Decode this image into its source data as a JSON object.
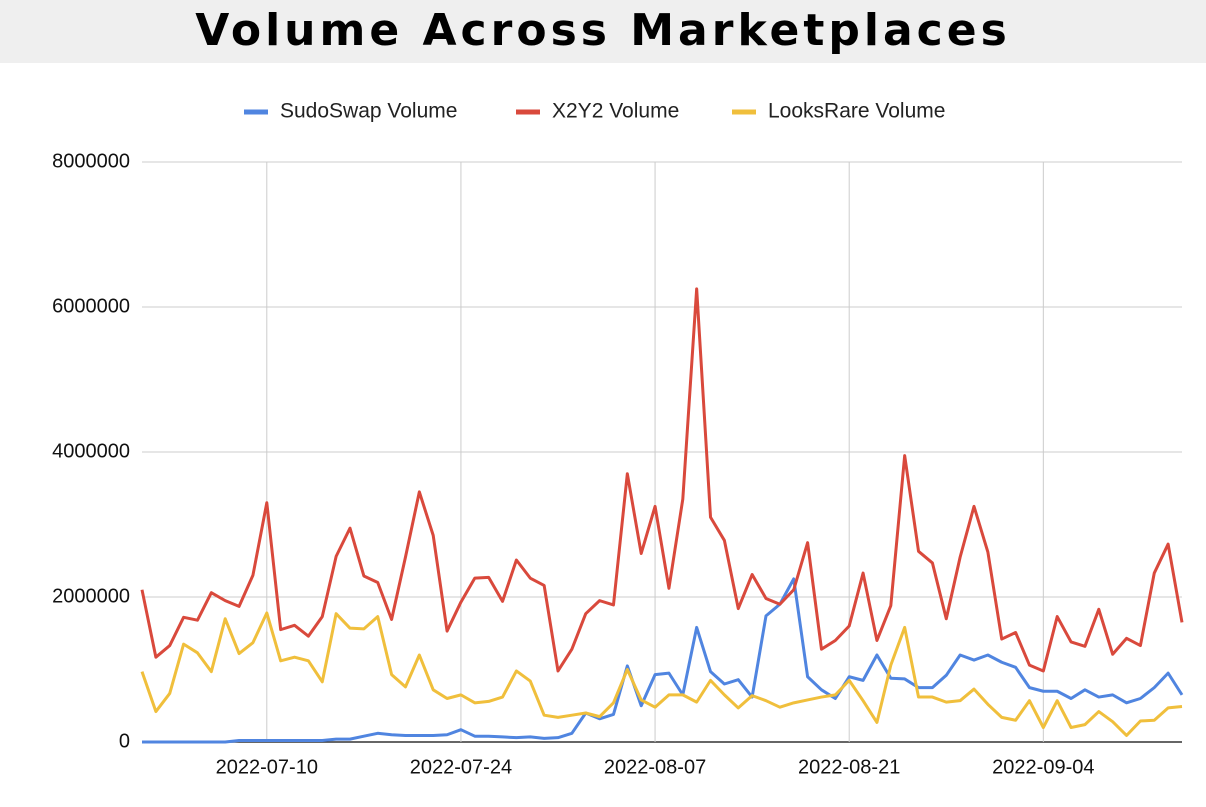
{
  "chart_data": {
    "type": "line",
    "title": "Volume Across Marketplaces",
    "x": [
      "2022-07-01",
      "2022-07-02",
      "2022-07-03",
      "2022-07-04",
      "2022-07-05",
      "2022-07-06",
      "2022-07-07",
      "2022-07-08",
      "2022-07-09",
      "2022-07-10",
      "2022-07-11",
      "2022-07-12",
      "2022-07-13",
      "2022-07-14",
      "2022-07-15",
      "2022-07-16",
      "2022-07-17",
      "2022-07-18",
      "2022-07-19",
      "2022-07-20",
      "2022-07-21",
      "2022-07-22",
      "2022-07-23",
      "2022-07-24",
      "2022-07-25",
      "2022-07-26",
      "2022-07-27",
      "2022-07-28",
      "2022-07-29",
      "2022-07-30",
      "2022-07-31",
      "2022-08-01",
      "2022-08-02",
      "2022-08-03",
      "2022-08-04",
      "2022-08-05",
      "2022-08-06",
      "2022-08-07",
      "2022-08-08",
      "2022-08-09",
      "2022-08-10",
      "2022-08-11",
      "2022-08-12",
      "2022-08-13",
      "2022-08-14",
      "2022-08-15",
      "2022-08-16",
      "2022-08-17",
      "2022-08-18",
      "2022-08-19",
      "2022-08-20",
      "2022-08-21",
      "2022-08-22",
      "2022-08-23",
      "2022-08-24",
      "2022-08-25",
      "2022-08-26",
      "2022-08-27",
      "2022-08-28",
      "2022-08-29",
      "2022-08-30",
      "2022-08-31",
      "2022-09-01",
      "2022-09-02",
      "2022-09-03",
      "2022-09-04",
      "2022-09-05",
      "2022-09-06",
      "2022-09-07",
      "2022-09-08",
      "2022-09-09",
      "2022-09-10",
      "2022-09-11",
      "2022-09-12",
      "2022-09-13",
      "2022-09-14"
    ],
    "series": [
      {
        "name": "SudoSwap Volume",
        "color": "#5085e0",
        "values": [
          0,
          0,
          0,
          0,
          0,
          0,
          0,
          20000,
          20000,
          20000,
          20000,
          20000,
          20000,
          20000,
          40000,
          40000,
          80000,
          120000,
          100000,
          90000,
          90000,
          90000,
          100000,
          170000,
          80000,
          80000,
          70000,
          60000,
          70000,
          50000,
          60000,
          120000,
          400000,
          320000,
          380000,
          1050000,
          500000,
          930000,
          950000,
          650000,
          1580000,
          970000,
          800000,
          860000,
          620000,
          1740000,
          1900000,
          2250000,
          900000,
          720000,
          600000,
          900000,
          850000,
          1200000,
          880000,
          870000,
          750000,
          750000,
          920000,
          1200000,
          1130000,
          1200000,
          1100000,
          1030000,
          750000,
          700000,
          700000,
          600000,
          720000,
          620000,
          650000,
          540000,
          600000,
          750000,
          950000,
          650000
        ]
      },
      {
        "name": "X2Y2 Volume",
        "color": "#d9493c",
        "values": [
          2100000,
          1170000,
          1330000,
          1720000,
          1680000,
          2060000,
          1950000,
          1870000,
          2300000,
          3300000,
          1550000,
          1610000,
          1460000,
          1730000,
          2560000,
          2950000,
          2290000,
          2200000,
          1690000,
          2550000,
          3450000,
          2850000,
          1530000,
          1930000,
          2260000,
          2270000,
          1940000,
          2510000,
          2260000,
          2160000,
          980000,
          1280000,
          1770000,
          1950000,
          1890000,
          3700000,
          2600000,
          3250000,
          2120000,
          3350000,
          6250000,
          3100000,
          2780000,
          1840000,
          2310000,
          1980000,
          1900000,
          2100000,
          2750000,
          1280000,
          1400000,
          1600000,
          2330000,
          1400000,
          1880000,
          3950000,
          2630000,
          2470000,
          1700000,
          2550000,
          3250000,
          2620000,
          1420000,
          1510000,
          1060000,
          980000,
          1730000,
          1380000,
          1320000,
          1830000,
          1210000,
          1430000,
          1330000,
          2330000,
          2730000,
          1650000
        ]
      },
      {
        "name": "LooksRare Volume",
        "color": "#f0bf3c",
        "values": [
          970000,
          420000,
          670000,
          1350000,
          1230000,
          970000,
          1700000,
          1220000,
          1370000,
          1780000,
          1120000,
          1170000,
          1120000,
          830000,
          1770000,
          1570000,
          1560000,
          1730000,
          930000,
          760000,
          1200000,
          720000,
          600000,
          650000,
          540000,
          560000,
          620000,
          980000,
          840000,
          370000,
          340000,
          370000,
          400000,
          350000,
          540000,
          1000000,
          580000,
          480000,
          650000,
          650000,
          550000,
          850000,
          650000,
          470000,
          640000,
          570000,
          480000,
          540000,
          580000,
          620000,
          650000,
          850000,
          570000,
          270000,
          1060000,
          1580000,
          620000,
          620000,
          550000,
          570000,
          730000,
          520000,
          340000,
          300000,
          570000,
          200000,
          570000,
          200000,
          240000,
          420000,
          280000,
          90000,
          290000,
          300000,
          470000,
          490000
        ]
      }
    ],
    "xlim": [
      "2022-07-01",
      "2022-09-14"
    ],
    "xticks": [
      "2022-07-10",
      "2022-07-24",
      "2022-08-07",
      "2022-08-21",
      "2022-09-04"
    ],
    "ylim": [
      0,
      8000000
    ],
    "yticks": [
      0,
      2000000,
      4000000,
      6000000,
      8000000
    ],
    "grid": true,
    "legend": "top"
  }
}
